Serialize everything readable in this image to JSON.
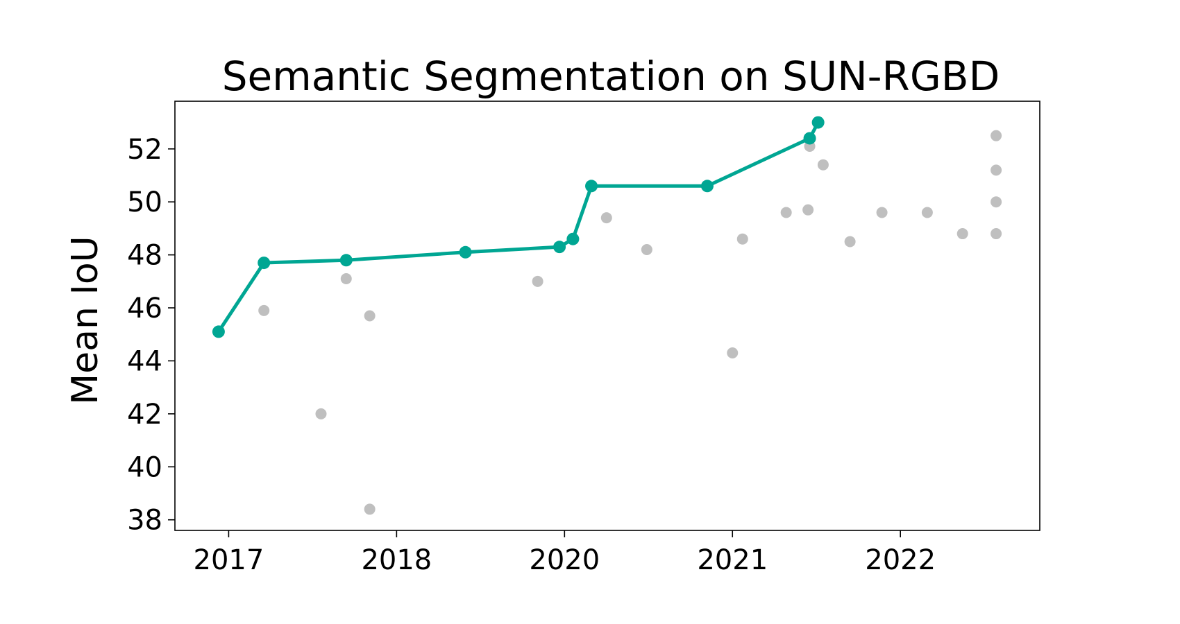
{
  "chart_data": {
    "type": "scatter",
    "title": "Semantic Segmentation on SUN-RGBD",
    "xlabel": "",
    "ylabel": "Mean IoU",
    "x_ticks": [
      "2017",
      "2018",
      "2020",
      "2021",
      "2022"
    ],
    "y_ticks": [
      38,
      40,
      42,
      44,
      46,
      48,
      50,
      52
    ],
    "xlim": [
      -0.32,
      4.83
    ],
    "ylim": [
      37.6,
      53.8
    ],
    "grid": false,
    "colors": {
      "frontier": "#00a693",
      "other": "#bfbfbf"
    },
    "series": [
      {
        "role": "frontier",
        "x": [
          -0.06,
          0.21,
          0.7,
          1.41,
          1.97,
          2.05,
          2.16,
          2.85,
          3.46,
          3.51
        ],
        "y": [
          45.1,
          47.7,
          47.8,
          48.1,
          48.3,
          48.6,
          50.6,
          50.6,
          52.4,
          53.0
        ]
      },
      {
        "role": "other",
        "x": [
          0.21,
          0.55,
          0.7,
          0.84,
          0.84,
          1.84,
          2.25,
          2.49,
          3.0,
          3.06,
          3.32,
          3.45,
          3.46,
          3.54,
          3.7,
          3.89,
          4.16,
          4.37,
          4.57,
          4.57,
          4.57,
          4.57
        ],
        "y": [
          45.9,
          42.0,
          47.1,
          45.7,
          38.4,
          47.0,
          49.4,
          48.2,
          44.3,
          48.6,
          49.6,
          49.7,
          52.1,
          51.4,
          48.5,
          49.6,
          49.6,
          48.8,
          52.5,
          51.2,
          50.0,
          48.8
        ]
      }
    ]
  }
}
